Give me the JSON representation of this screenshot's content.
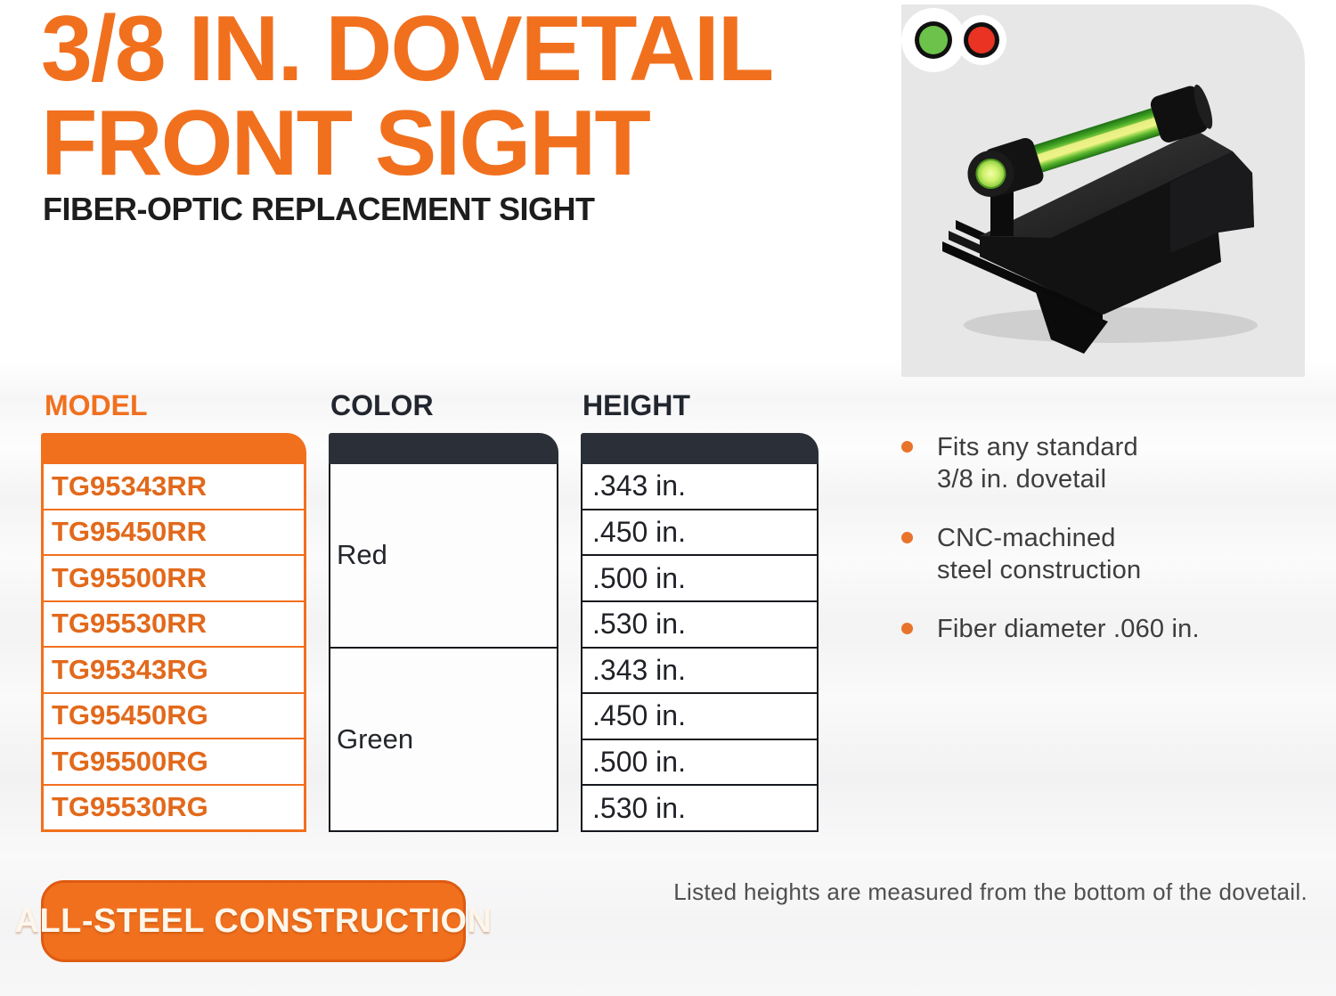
{
  "title": {
    "line1": "3/8 IN. DOVETAIL",
    "line2": "FRONT SIGHT"
  },
  "subtitle": "FIBER-OPTIC REPLACEMENT SIGHT",
  "product_panel": {
    "image_alt": "Black steel dovetail front sight with green fiber-optic rod",
    "dots": [
      {
        "name": "green-fiber-option",
        "color": "#6cc24a"
      },
      {
        "name": "red-fiber-option",
        "color": "#ea3323"
      }
    ]
  },
  "table": {
    "headers": {
      "model": "MODEL",
      "color": "COLOR",
      "height": "HEIGHT"
    },
    "models": [
      "TG95343RR",
      "TG95450RR",
      "TG95500RR",
      "TG95530RR",
      "TG95343RG",
      "TG95450RG",
      "TG95500RG",
      "TG95530RG"
    ],
    "color_groups": [
      {
        "label": "Red",
        "row_span": 4
      },
      {
        "label": "Green",
        "row_span": 4
      }
    ],
    "heights": [
      ".343 in.",
      ".450 in.",
      ".500 in.",
      ".530 in.",
      ".343 in.",
      ".450 in.",
      ".500 in.",
      ".530 in."
    ]
  },
  "features": [
    {
      "lines": [
        "Fits any standard",
        "3/8 in. dovetail"
      ]
    },
    {
      "lines": [
        "CNC-machined",
        "steel construction"
      ]
    },
    {
      "lines": [
        "Fiber diameter .060 in."
      ]
    }
  ],
  "footnote": "Listed heights are measured from the bottom of the dovetail.",
  "badge": {
    "label": "ALL-STEEL CONSTRUCTION"
  },
  "colors": {
    "accent_orange": "#F1701E",
    "header_dark": "#2A2F38",
    "panel_gray": "#E7E7E7",
    "dot_green": "#6cc24a",
    "dot_red": "#ea3323",
    "fiber_green": "#8BD34B"
  }
}
